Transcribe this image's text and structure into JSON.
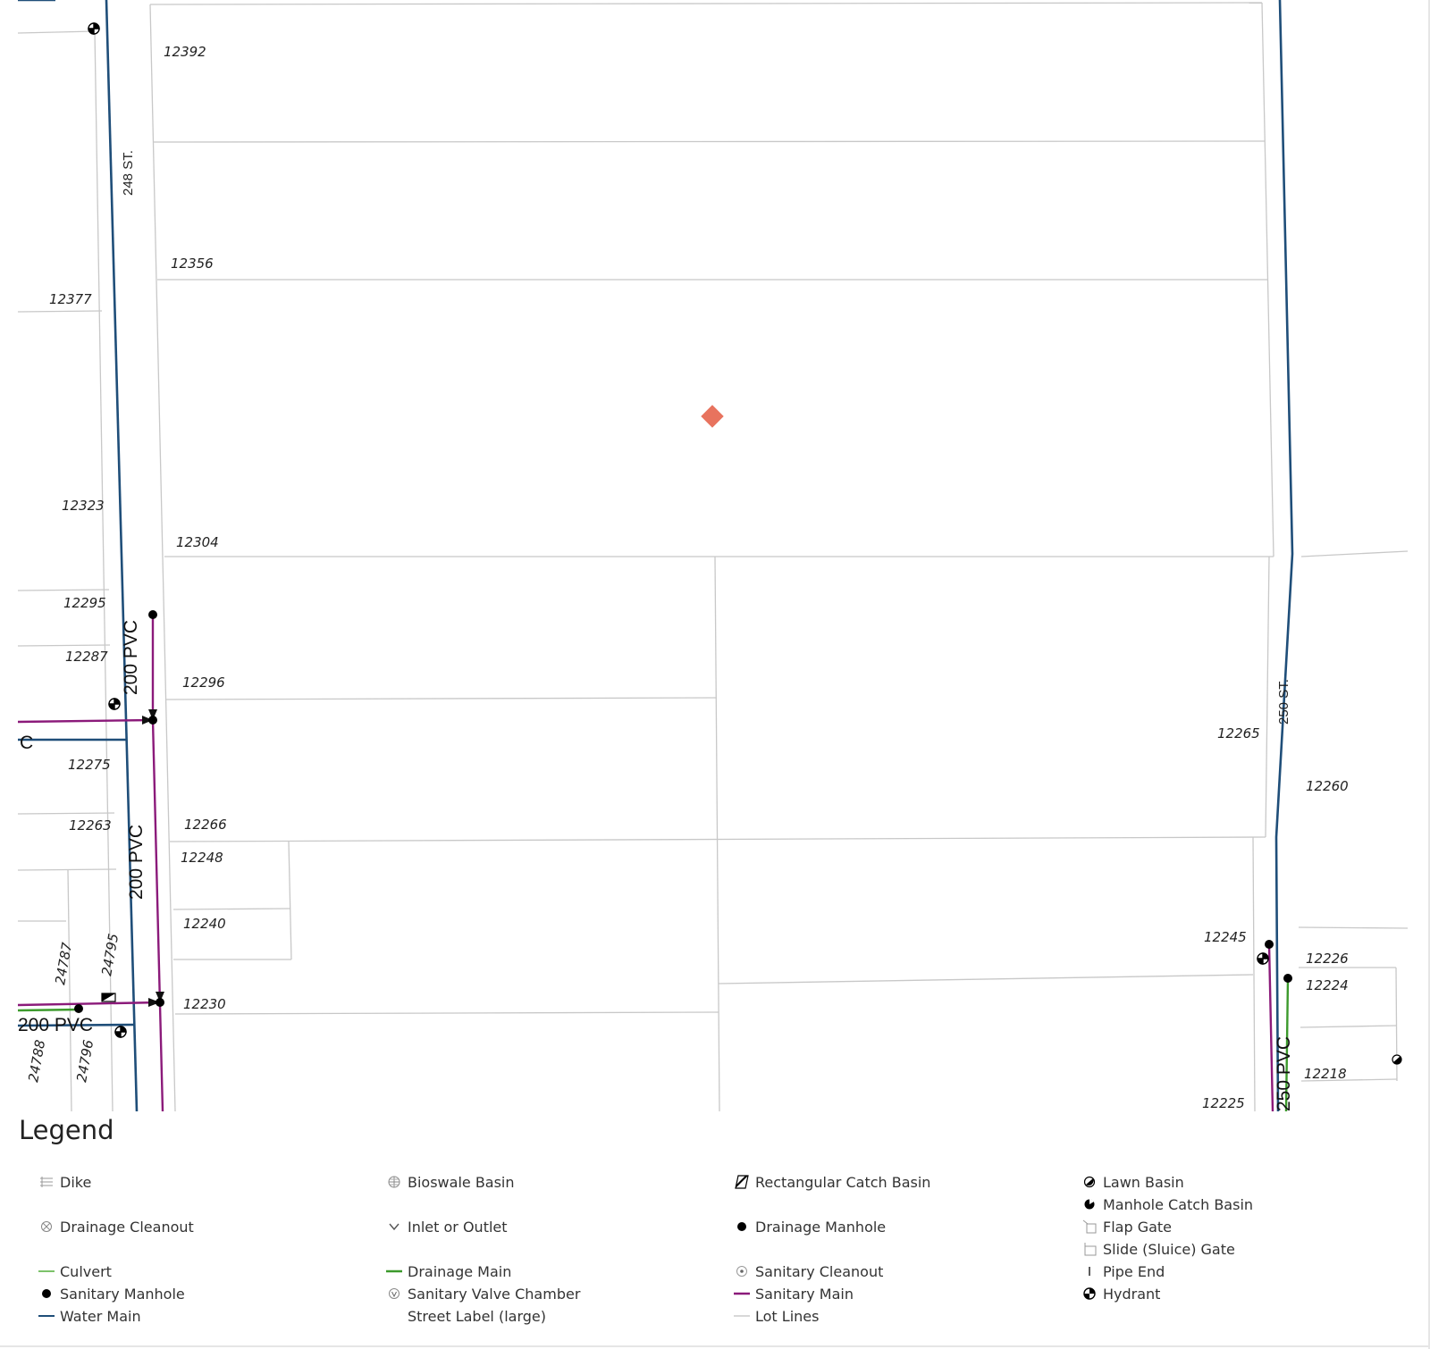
{
  "map": {
    "lot_numbers": [
      "12392",
      "12356",
      "12377",
      "12323",
      "12304",
      "12295",
      "12287",
      "12296",
      "12275",
      "12263",
      "12266",
      "12248",
      "12240",
      "12230",
      "12265",
      "12260",
      "12245",
      "12226",
      "12224",
      "12218",
      "12225",
      "24787",
      "24795",
      "24788",
      "24796"
    ],
    "street_labels": [
      "248 ST.",
      "250 ST."
    ],
    "pipe_labels": [
      "200 PVC",
      "200 PVC",
      "200 PVC",
      "250 PVC",
      "C"
    ],
    "colors": {
      "water_main": "#1f4e79",
      "sanitary_main": "#8b1a7a",
      "drainage_main": "#3c9a2c",
      "lot_lines": "#c8c8c8",
      "subject_marker": "#e8735e"
    }
  },
  "legend": {
    "title": "Legend",
    "items": [
      {
        "label": "Dike",
        "icon": "dike-icon"
      },
      {
        "label": "Bioswale Basin",
        "icon": "bioswale-basin-icon"
      },
      {
        "label": "Rectangular Catch Basin",
        "icon": "rectangular-catch-basin-icon"
      },
      {
        "label": "Lawn Basin",
        "icon": "lawn-basin-icon"
      },
      {
        "label": "Manhole Catch Basin",
        "icon": "manhole-catch-basin-icon"
      },
      {
        "label": "Drainage Cleanout",
        "icon": "drainage-cleanout-icon"
      },
      {
        "label": "Inlet or Outlet",
        "icon": "inlet-outlet-icon"
      },
      {
        "label": "Drainage Manhole",
        "icon": "drainage-manhole-icon"
      },
      {
        "label": "Flap Gate",
        "icon": "flap-gate-icon"
      },
      {
        "label": "Slide (Sluice) Gate",
        "icon": "slide-gate-icon"
      },
      {
        "label": "Culvert",
        "icon": "culvert-icon"
      },
      {
        "label": "Drainage Main",
        "icon": "drainage-main-icon"
      },
      {
        "label": "Sanitary Cleanout",
        "icon": "sanitary-cleanout-icon"
      },
      {
        "label": "Pipe End",
        "icon": "pipe-end-icon"
      },
      {
        "label": "Sanitary Manhole",
        "icon": "sanitary-manhole-icon"
      },
      {
        "label": "Sanitary Valve Chamber",
        "icon": "sanitary-valve-chamber-icon"
      },
      {
        "label": "Sanitary Main",
        "icon": "sanitary-main-icon"
      },
      {
        "label": "Hydrant",
        "icon": "hydrant-icon"
      },
      {
        "label": "Water Main",
        "icon": "water-main-icon"
      },
      {
        "label": "Street Label (large)",
        "icon": "street-label-icon"
      },
      {
        "label": "Lot Lines",
        "icon": "lot-lines-icon"
      }
    ]
  }
}
